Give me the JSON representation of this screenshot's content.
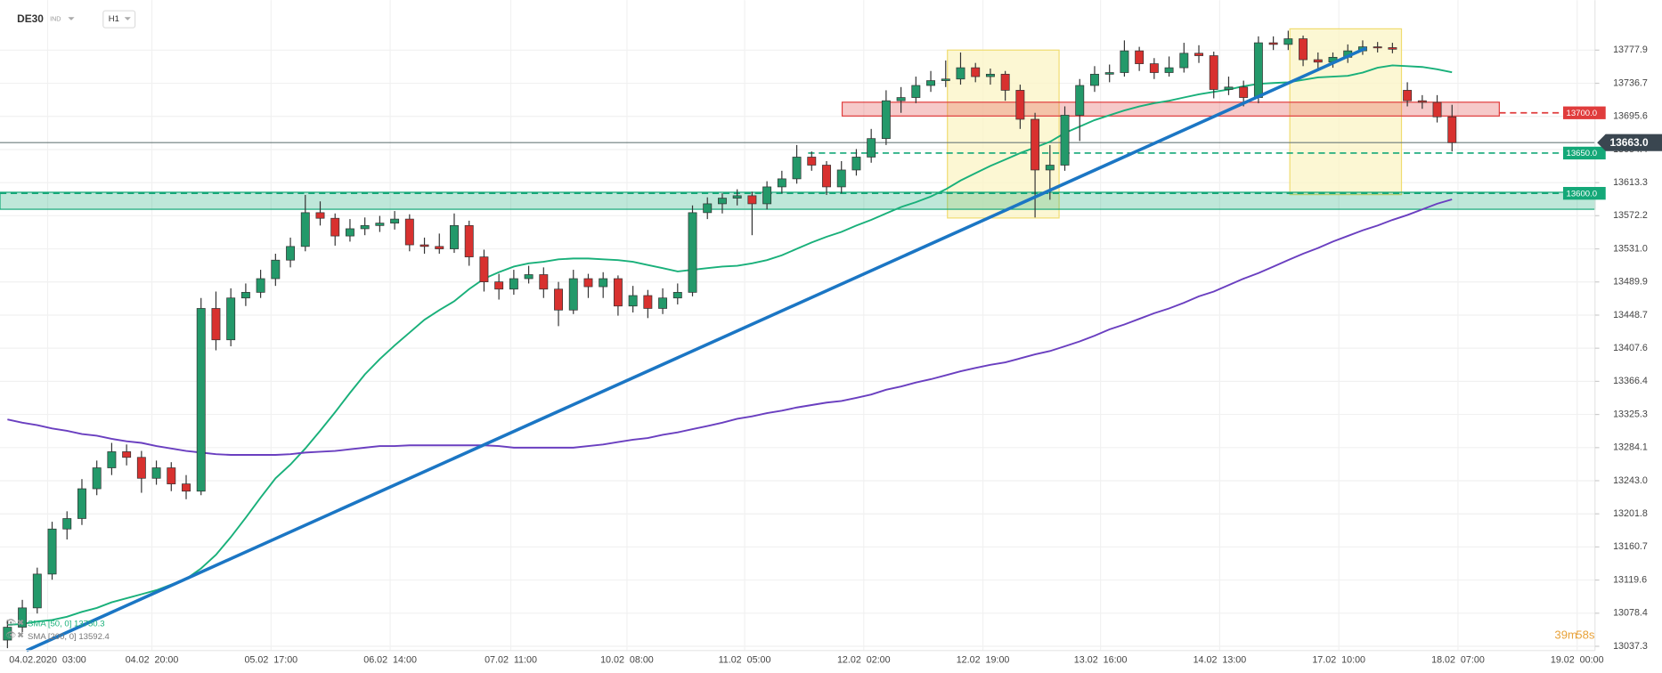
{
  "header": {
    "symbol": "DE30",
    "market": "IND",
    "interval": "H1"
  },
  "countdown": {
    "minutes": "39m",
    "seconds": "58s"
  },
  "chart_data": {
    "type": "candlestick",
    "up_color": "#23996a",
    "down_color": "#d8312f",
    "candles": [
      [
        13045,
        13070,
        13035,
        13061
      ],
      [
        13061,
        13095,
        13055,
        13085
      ],
      [
        13085,
        13135,
        13078,
        13127
      ],
      [
        13127,
        13192,
        13120,
        13183
      ],
      [
        13183,
        13205,
        13170,
        13196
      ],
      [
        13196,
        13245,
        13188,
        13233
      ],
      [
        13233,
        13268,
        13225,
        13259
      ],
      [
        13259,
        13290,
        13250,
        13279
      ],
      [
        13279,
        13288,
        13262,
        13272
      ],
      [
        13272,
        13280,
        13228,
        13246
      ],
      [
        13246,
        13268,
        13238,
        13259
      ],
      [
        13259,
        13266,
        13230,
        13239
      ],
      [
        13239,
        13250,
        13220,
        13230
      ],
      [
        13230,
        13470,
        13225,
        13457
      ],
      [
        13457,
        13478,
        13405,
        13418
      ],
      [
        13418,
        13482,
        13410,
        13470
      ],
      [
        13470,
        13488,
        13460,
        13477
      ],
      [
        13477,
        13505,
        13470,
        13494
      ],
      [
        13494,
        13525,
        13485,
        13517
      ],
      [
        13517,
        13545,
        13508,
        13534
      ],
      [
        13534,
        13598,
        13528,
        13576
      ],
      [
        13576,
        13590,
        13560,
        13569
      ],
      [
        13569,
        13575,
        13535,
        13547
      ],
      [
        13547,
        13568,
        13540,
        13556
      ],
      [
        13556,
        13570,
        13548,
        13560
      ],
      [
        13560,
        13572,
        13552,
        13563
      ],
      [
        13563,
        13578,
        13555,
        13568
      ],
      [
        13568,
        13574,
        13528,
        13536
      ],
      [
        13536,
        13545,
        13525,
        13534
      ],
      [
        13534,
        13550,
        13525,
        13531
      ],
      [
        13531,
        13575,
        13526,
        13560
      ],
      [
        13560,
        13566,
        13510,
        13521
      ],
      [
        13521,
        13530,
        13478,
        13490
      ],
      [
        13490,
        13500,
        13468,
        13481
      ],
      [
        13481,
        13505,
        13474,
        13494
      ],
      [
        13494,
        13510,
        13488,
        13499
      ],
      [
        13499,
        13508,
        13470,
        13481
      ],
      [
        13481,
        13490,
        13435,
        13455
      ],
      [
        13455,
        13505,
        13450,
        13494
      ],
      [
        13494,
        13500,
        13470,
        13484
      ],
      [
        13484,
        13502,
        13470,
        13494
      ],
      [
        13494,
        13498,
        13448,
        13460
      ],
      [
        13460,
        13485,
        13452,
        13473
      ],
      [
        13473,
        13480,
        13445,
        13457
      ],
      [
        13457,
        13482,
        13450,
        13470
      ],
      [
        13470,
        13488,
        13462,
        13477
      ],
      [
        13477,
        13585,
        13472,
        13576
      ],
      [
        13576,
        13595,
        13568,
        13587
      ],
      [
        13587,
        13600,
        13575,
        13594
      ],
      [
        13594,
        13605,
        13585,
        13597
      ],
      [
        13597,
        13602,
        13548,
        13587
      ],
      [
        13587,
        13615,
        13580,
        13608
      ],
      [
        13608,
        13628,
        13600,
        13618
      ],
      [
        13618,
        13660,
        13612,
        13645
      ],
      [
        13645,
        13652,
        13628,
        13635
      ],
      [
        13635,
        13640,
        13598,
        13608
      ],
      [
        13608,
        13640,
        13600,
        13629
      ],
      [
        13629,
        13655,
        13622,
        13645
      ],
      [
        13645,
        13680,
        13638,
        13668
      ],
      [
        13668,
        13728,
        13660,
        13715
      ],
      [
        13715,
        13732,
        13700,
        13719
      ],
      [
        13719,
        13745,
        13712,
        13734
      ],
      [
        13734,
        13752,
        13726,
        13740
      ],
      [
        13740,
        13765,
        13732,
        13742
      ],
      [
        13742,
        13775,
        13735,
        13756
      ],
      [
        13756,
        13762,
        13738,
        13745
      ],
      [
        13745,
        13755,
        13735,
        13748
      ],
      [
        13748,
        13752,
        13715,
        13728
      ],
      [
        13728,
        13735,
        13680,
        13692
      ],
      [
        13692,
        13700,
        13570,
        13629
      ],
      [
        13629,
        13660,
        13592,
        13635
      ],
      [
        13635,
        13708,
        13628,
        13697
      ],
      [
        13697,
        13742,
        13665,
        13734
      ],
      [
        13734,
        13758,
        13726,
        13748
      ],
      [
        13748,
        13760,
        13738,
        13750
      ],
      [
        13750,
        13790,
        13745,
        13777
      ],
      [
        13777,
        13782,
        13752,
        13761
      ],
      [
        13761,
        13768,
        13742,
        13750
      ],
      [
        13750,
        13770,
        13745,
        13756
      ],
      [
        13756,
        13787,
        13750,
        13774
      ],
      [
        13774,
        13784,
        13762,
        13771
      ],
      [
        13771,
        13776,
        13718,
        13729
      ],
      [
        13729,
        13745,
        13722,
        13732
      ],
      [
        13732,
        13740,
        13708,
        13719
      ],
      [
        13719,
        13795,
        13712,
        13787
      ],
      [
        13787,
        13795,
        13778,
        13785
      ],
      [
        13785,
        13802,
        13778,
        13792
      ],
      [
        13792,
        13796,
        13758,
        13766
      ],
      [
        13766,
        13775,
        13755,
        13763
      ],
      [
        13763,
        13775,
        13756,
        13769
      ],
      [
        13769,
        13785,
        13762,
        13777
      ],
      [
        13777,
        13790,
        13772,
        13782
      ],
      [
        13782,
        13788,
        13775,
        13781
      ],
      [
        13781,
        13787,
        13774,
        13779
      ],
      [
        13728,
        13738,
        13708,
        13715
      ],
      [
        13715,
        13722,
        13705,
        13713
      ],
      [
        13713,
        13722,
        13688,
        13695
      ],
      [
        13695,
        13710,
        13652,
        13663
      ]
    ],
    "series": [
      {
        "name": "SMA [50, 0] 13750.3",
        "color": "#19b07a",
        "values": [
          13064,
          13065,
          13068,
          13070,
          13074,
          13080,
          13085,
          13092,
          13097,
          13102,
          13107,
          13114,
          13121,
          13134,
          13151,
          13173,
          13197,
          13222,
          13246,
          13263,
          13283,
          13305,
          13328,
          13352,
          13375,
          13394,
          13411,
          13427,
          13443,
          13455,
          13466,
          13481,
          13494,
          13502,
          13509,
          13513,
          13515,
          13518,
          13519,
          13519,
          13518,
          13517,
          13515,
          13511,
          13507,
          13503,
          13505,
          13507,
          13509,
          13510,
          13513,
          13517,
          13523,
          13531,
          13539,
          13546,
          13552,
          13560,
          13567,
          13575,
          13583,
          13589,
          13596,
          13605,
          13616,
          13625,
          13634,
          13642,
          13650,
          13657,
          13664,
          13675,
          13683,
          13691,
          13697,
          13703,
          13708,
          13712,
          13715,
          13719,
          13723,
          13726,
          13729,
          13733,
          13736,
          13737,
          13738,
          13741,
          13744,
          13745,
          13746,
          13750,
          13756,
          13759,
          13758,
          13757,
          13754,
          13750.3
        ]
      },
      {
        "name": "SMA [200, 0] 13592.4",
        "color": "#6a3fc0",
        "values": [
          13319,
          13315,
          13312,
          13308,
          13305,
          13301,
          13299,
          13295,
          13292,
          13290,
          13286,
          13283,
          13280,
          13278,
          13276,
          13275,
          13275,
          13275,
          13275,
          13276,
          13278,
          13279,
          13280,
          13282,
          13284,
          13286,
          13286,
          13287,
          13287,
          13287,
          13287,
          13287,
          13287,
          13286,
          13284,
          13284,
          13284,
          13284,
          13284,
          13286,
          13288,
          13291,
          13294,
          13296,
          13300,
          13303,
          13307,
          13311,
          13315,
          13320,
          13323,
          13327,
          13330,
          13334,
          13337,
          13340,
          13342,
          13346,
          13350,
          13356,
          13360,
          13365,
          13369,
          13374,
          13379,
          13383,
          13387,
          13390,
          13395,
          13400,
          13404,
          13410,
          13416,
          13423,
          13431,
          13437,
          13444,
          13451,
          13457,
          13464,
          13472,
          13478,
          13486,
          13494,
          13501,
          13509,
          13517,
          13525,
          13532,
          13540,
          13547,
          13554,
          13560,
          13567,
          13573,
          13580,
          13587,
          13592.4
        ]
      }
    ],
    "xlim": [
      -0.5,
      106.6
    ],
    "xticks": [
      {
        "value": 2.7,
        "label": "04.02.2020  03:00"
      },
      {
        "value": 9.7,
        "label": "04.02  20:00"
      },
      {
        "value": 17.7,
        "label": "05.02  17:00"
      },
      {
        "value": 25.7,
        "label": "06.02  14:00"
      },
      {
        "value": 33.8,
        "label": "07.02  11:00"
      },
      {
        "value": 41.6,
        "label": "10.02  08:00"
      },
      {
        "value": 49.5,
        "label": "11.02  05:00"
      },
      {
        "value": 57.5,
        "label": "12.02  02:00"
      },
      {
        "value": 65.5,
        "label": "12.02  19:00"
      },
      {
        "value": 73.4,
        "label": "13.02  16:00"
      },
      {
        "value": 81.4,
        "label": "14.02  13:00"
      },
      {
        "value": 89.4,
        "label": "17.02  10:00"
      },
      {
        "value": 97.4,
        "label": "18.02  07:00"
      },
      {
        "value": 105.4,
        "label": "19.02  00:00"
      }
    ],
    "ylim": [
      13032,
      13840
    ],
    "yticks": [
      13777.9,
      13736.7,
      13695.6,
      13654.4,
      13613.3,
      13572.2,
      {
        "value": 13531,
        "label": "13531.0"
      },
      13489.9,
      13448.7,
      13407.6,
      13366.4,
      13325.3,
      13284.1,
      {
        "value": 13243,
        "label": "13243.0"
      },
      13201.8,
      13160.7,
      13119.6,
      13078.4,
      13037.3
    ],
    "levels": [
      {
        "value": 13700,
        "label": "13700.0",
        "color": "#e03c3c"
      },
      {
        "value": 13650,
        "label": "13650.0",
        "color": "#14a878"
      },
      {
        "value": 13600,
        "label": "13600.0",
        "color": "#14a878"
      }
    ],
    "last_price": {
      "value": 13663,
      "label": "13663.0",
      "color": "#3a4650"
    }
  }
}
